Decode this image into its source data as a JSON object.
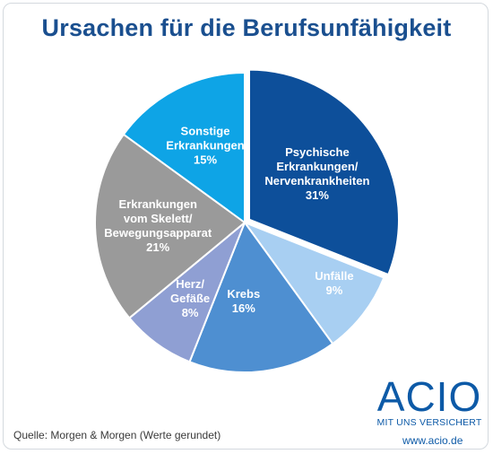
{
  "header": {
    "title": "Ursachen für die Berufsunfähigkeit"
  },
  "footer": {
    "source": "Quelle: Morgen & Morgen (Werte gerundet)",
    "logo_word": "ACIO",
    "logo_tagline": "MIT UNS VERSICHERT",
    "url": "www.acio.de"
  },
  "chart_data": {
    "type": "pie",
    "title": "Ursachen für die Berufsunfähigkeit",
    "start_angle_deg": 0,
    "direction": "clockwise",
    "slices": [
      {
        "label_lines": [
          "Psychische",
          "Erkrankungen/",
          "Nervenkrankheiten",
          "31%"
        ],
        "value": 31,
        "color": "#0d4f9a",
        "exploded": true
      },
      {
        "label_lines": [
          "Unfälle",
          "9%"
        ],
        "value": 9,
        "color": "#a8cff2"
      },
      {
        "label_lines": [
          "Krebs",
          "16%"
        ],
        "value": 16,
        "color": "#4e8fd1"
      },
      {
        "label_lines": [
          "Herz/",
          "Gefäße",
          "8%"
        ],
        "value": 8,
        "color": "#8f9fd3"
      },
      {
        "label_lines": [
          "Erkrankungen",
          "vom Skelett/",
          "Bewegungsapparat",
          "21%"
        ],
        "value": 21,
        "color": "#9a9a9a"
      },
      {
        "label_lines": [
          "Sonstige",
          "Erkrankungen",
          "15%"
        ],
        "value": 15,
        "color": "#0ea4e6"
      }
    ]
  }
}
